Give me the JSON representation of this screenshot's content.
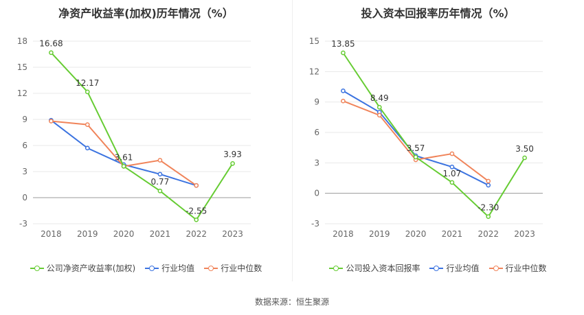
{
  "source": "数据来源：恒生聚源",
  "colors": {
    "company": "#66cc33",
    "avg": "#3b73e0",
    "median": "#f0845a"
  },
  "chart_data": [
    {
      "type": "line",
      "title": "净资产收益率(加权)历年情况（%）",
      "categories": [
        "2018",
        "2019",
        "2020",
        "2021",
        "2022",
        "2023"
      ],
      "ylim": [
        -3,
        18
      ],
      "yticks": [
        -3,
        0,
        3,
        6,
        9,
        12,
        15,
        18
      ],
      "grid": true,
      "legend": "bottom",
      "series": [
        {
          "name": "公司净资产收益率(加权)",
          "key": "company",
          "values": [
            16.68,
            12.17,
            3.61,
            0.77,
            -2.55,
            3.93
          ],
          "labels": [
            "16.68",
            "12.17",
            "3.61",
            "0.77",
            "-2.55",
            "3.93"
          ]
        },
        {
          "name": "行业均值",
          "key": "avg",
          "values": [
            8.9,
            5.7,
            3.8,
            2.7,
            1.4,
            null
          ]
        },
        {
          "name": "行业中位数",
          "key": "median",
          "values": [
            8.8,
            8.4,
            3.6,
            4.3,
            1.4,
            null
          ]
        }
      ]
    },
    {
      "type": "line",
      "title": "投入资本回报率历年情况（%）",
      "categories": [
        "2018",
        "2019",
        "2020",
        "2021",
        "2022",
        "2023"
      ],
      "ylim": [
        -3,
        15
      ],
      "yticks": [
        -3,
        0,
        3,
        6,
        9,
        12,
        15
      ],
      "grid": true,
      "legend": "bottom",
      "series": [
        {
          "name": "公司投入资本回报率",
          "key": "company",
          "values": [
            13.85,
            8.49,
            3.57,
            1.07,
            -2.3,
            3.5
          ],
          "labels": [
            "13.85",
            "8.49",
            "3.57",
            "1.07",
            "-2.30",
            "3.50"
          ]
        },
        {
          "name": "行业均值",
          "key": "avg",
          "values": [
            10.1,
            8.0,
            3.7,
            2.6,
            0.8,
            null
          ]
        },
        {
          "name": "行业中位数",
          "key": "median",
          "values": [
            9.1,
            7.7,
            3.3,
            3.9,
            1.2,
            null
          ]
        }
      ]
    }
  ]
}
